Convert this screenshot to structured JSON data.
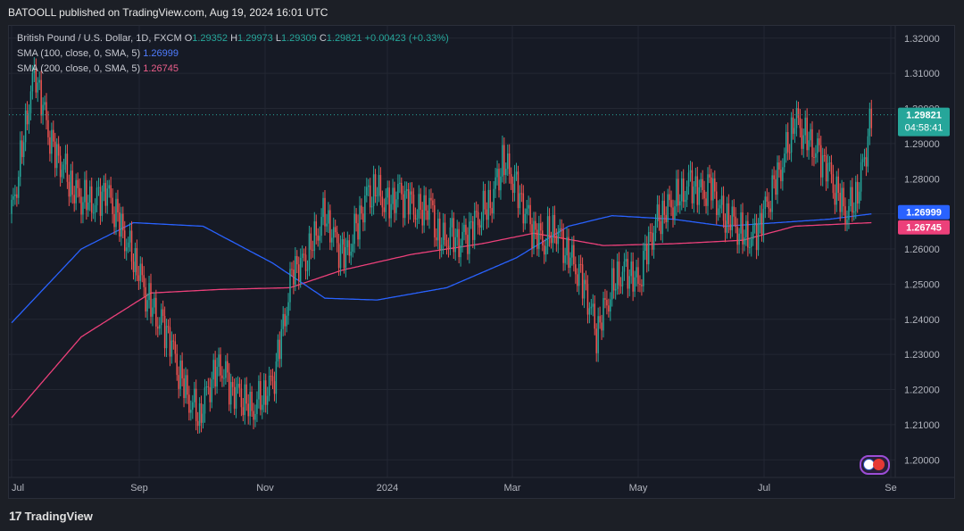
{
  "header": {
    "publisher": "BATOOLL published on TradingView.com, Aug 19, 2024 16:01 UTC"
  },
  "legend": {
    "symbol": "British Pound / U.S. Dollar, 1D, FXCM",
    "o_label": "O",
    "o": "1.29352",
    "h_label": "H",
    "h": "1.29973",
    "l_label": "L",
    "l": "1.29309",
    "c_label": "C",
    "c": "1.29821",
    "change": "+0.00423 (+0.33%)",
    "sma100_label": "SMA (100, close, 0, SMA, 5)",
    "sma100_value": "1.26999",
    "sma200_label": "SMA (200, close, 0, SMA, 5)",
    "sma200_value": "1.26745"
  },
  "footer": {
    "brand_mark": "17",
    "brand": "TradingView"
  },
  "colors": {
    "up": "#26a69a",
    "down": "#ef5350",
    "sma100": "#2962ff",
    "sma200": "#ec407a",
    "bg": "#161a25",
    "grid": "#232733"
  },
  "chart_data": {
    "type": "candlestick",
    "y_ticks": [
      "1.32000",
      "1.31000",
      "1.30000",
      "1.29000",
      "1.28000",
      "1.27000",
      "1.26000",
      "1.25000",
      "1.24000",
      "1.23000",
      "1.22000",
      "1.21000",
      "1.20000"
    ],
    "x_ticks": [
      "Jul",
      "Sep",
      "Nov",
      "2024",
      "Mar",
      "May",
      "Jul",
      "Se"
    ],
    "ylim": [
      1.195,
      1.3235
    ],
    "last_price": {
      "value": "1.29821",
      "countdown": "04:58:41"
    },
    "sma100_badge": "1.26999",
    "sma200_badge": "1.26745",
    "close_anchors": [
      [
        0,
        1.27
      ],
      [
        5,
        1.285
      ],
      [
        11,
        1.305
      ],
      [
        14,
        1.31
      ],
      [
        18,
        1.3
      ],
      [
        24,
        1.288
      ],
      [
        30,
        1.283
      ],
      [
        36,
        1.276
      ],
      [
        42,
        1.274
      ],
      [
        48,
        1.273
      ],
      [
        54,
        1.277
      ],
      [
        60,
        1.27
      ],
      [
        66,
        1.262
      ],
      [
        72,
        1.255
      ],
      [
        78,
        1.246
      ],
      [
        84,
        1.24
      ],
      [
        90,
        1.236
      ],
      [
        96,
        1.225
      ],
      [
        102,
        1.217
      ],
      [
        108,
        1.212
      ],
      [
        114,
        1.222
      ],
      [
        120,
        1.227
      ],
      [
        126,
        1.22
      ],
      [
        132,
        1.218
      ],
      [
        138,
        1.214
      ],
      [
        144,
        1.218
      ],
      [
        150,
        1.222
      ],
      [
        156,
        1.238
      ],
      [
        162,
        1.255
      ],
      [
        168,
        1.256
      ],
      [
        174,
        1.263
      ],
      [
        180,
        1.27
      ],
      [
        186,
        1.262
      ],
      [
        192,
        1.258
      ],
      [
        198,
        1.266
      ],
      [
        204,
        1.275
      ],
      [
        210,
        1.277
      ],
      [
        216,
        1.272
      ],
      [
        222,
        1.276
      ],
      [
        228,
        1.274
      ],
      [
        234,
        1.27
      ],
      [
        240,
        1.273
      ],
      [
        246,
        1.262
      ],
      [
        252,
        1.264
      ],
      [
        258,
        1.262
      ],
      [
        264,
        1.266
      ],
      [
        270,
        1.27
      ],
      [
        276,
        1.274
      ],
      [
        282,
        1.285
      ],
      [
        288,
        1.28
      ],
      [
        294,
        1.272
      ],
      [
        300,
        1.265
      ],
      [
        306,
        1.262
      ],
      [
        312,
        1.266
      ],
      [
        318,
        1.26
      ],
      [
        324,
        1.255
      ],
      [
        330,
        1.248
      ],
      [
        336,
        1.236
      ],
      [
        342,
        1.245
      ],
      [
        348,
        1.252
      ],
      [
        354,
        1.254
      ],
      [
        360,
        1.25
      ],
      [
        366,
        1.262
      ],
      [
        372,
        1.269
      ],
      [
        378,
        1.272
      ],
      [
        384,
        1.275
      ],
      [
        390,
        1.279
      ],
      [
        396,
        1.276
      ],
      [
        402,
        1.278
      ],
      [
        408,
        1.27
      ],
      [
        414,
        1.268
      ],
      [
        420,
        1.264
      ],
      [
        426,
        1.263
      ],
      [
        432,
        1.27
      ],
      [
        438,
        1.278
      ],
      [
        444,
        1.286
      ],
      [
        450,
        1.297
      ],
      [
        456,
        1.292
      ],
      [
        462,
        1.288
      ],
      [
        468,
        1.284
      ],
      [
        474,
        1.276
      ],
      [
        480,
        1.27
      ],
      [
        486,
        1.276
      ],
      [
        490,
        1.286
      ],
      [
        494,
        1.298
      ]
    ],
    "sma100_anchors": [
      [
        0,
        1.239
      ],
      [
        40,
        1.26
      ],
      [
        70,
        1.2675
      ],
      [
        110,
        1.2665
      ],
      [
        150,
        1.256
      ],
      [
        180,
        1.246
      ],
      [
        210,
        1.2455
      ],
      [
        250,
        1.249
      ],
      [
        290,
        1.2575
      ],
      [
        320,
        1.2665
      ],
      [
        345,
        1.2695
      ],
      [
        380,
        1.2685
      ],
      [
        410,
        1.2665
      ],
      [
        440,
        1.2675
      ],
      [
        470,
        1.2685
      ],
      [
        494,
        1.27
      ]
    ],
    "sma200_anchors": [
      [
        0,
        1.212
      ],
      [
        40,
        1.235
      ],
      [
        80,
        1.2475
      ],
      [
        120,
        1.2485
      ],
      [
        160,
        1.249
      ],
      [
        190,
        1.254
      ],
      [
        230,
        1.2585
      ],
      [
        270,
        1.2615
      ],
      [
        300,
        1.2645
      ],
      [
        340,
        1.261
      ],
      [
        380,
        1.2615
      ],
      [
        420,
        1.2625
      ],
      [
        450,
        1.2665
      ],
      [
        494,
        1.2675
      ]
    ]
  }
}
